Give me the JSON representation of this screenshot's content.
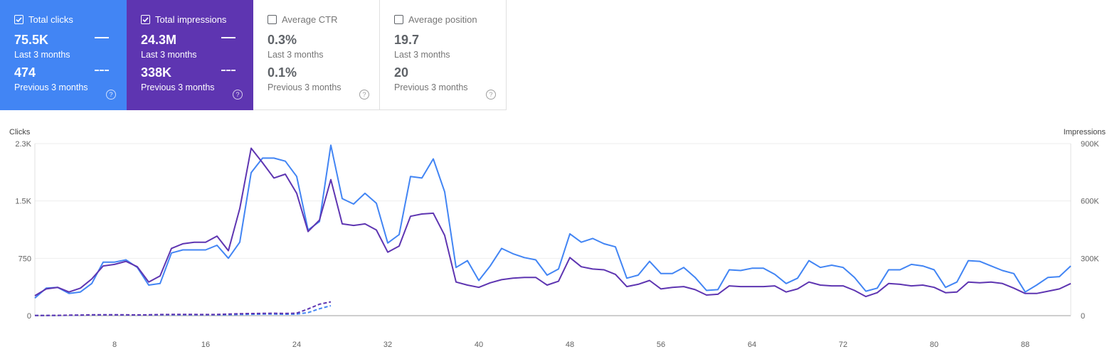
{
  "cards": [
    {
      "label": "Total clicks",
      "checked": true,
      "bg": "#4285f4",
      "value": "75.5K",
      "period": "Last 3 months",
      "prev_value": "474",
      "prev_period": "Previous 3 months"
    },
    {
      "label": "Total impressions",
      "checked": true,
      "bg": "#5e35b1",
      "value": "24.3M",
      "period": "Last 3 months",
      "prev_value": "338K",
      "prev_period": "Previous 3 months"
    },
    {
      "label": "Average CTR",
      "checked": false,
      "bg": "#ffffff",
      "value": "0.3%",
      "period": "Last 3 months",
      "prev_value": "0.1%",
      "prev_period": "Previous 3 months"
    },
    {
      "label": "Average position",
      "checked": false,
      "bg": "#ffffff",
      "value": "19.7",
      "period": "Last 3 months",
      "prev_value": "20",
      "prev_period": "Previous 3 months"
    }
  ],
  "help_icon": "?",
  "chart_data": {
    "type": "line",
    "left_axis_label": "Clicks",
    "right_axis_label": "Impressions",
    "left_ylim": [
      0,
      2250
    ],
    "right_ylim": [
      0,
      900000
    ],
    "left_ticks": [
      "0",
      "750",
      "1.5K",
      "2.3K"
    ],
    "right_ticks": [
      "0",
      "300K",
      "600K",
      "900K"
    ],
    "x_range": [
      1,
      92
    ],
    "x_ticks": [
      8,
      16,
      24,
      32,
      40,
      48,
      56,
      64,
      72,
      80,
      88
    ],
    "grid": true,
    "series": [
      {
        "name": "Total clicks",
        "axis": "left",
        "color": "#4285f4",
        "style": "solid",
        "x_start": 1,
        "values": [
          230,
          360,
          370,
          290,
          310,
          420,
          700,
          700,
          730,
          630,
          400,
          420,
          820,
          860,
          860,
          860,
          920,
          750,
          960,
          1870,
          2060,
          2060,
          2020,
          1820,
          1120,
          1230,
          2230,
          1530,
          1460,
          1600,
          1470,
          950,
          1060,
          1820,
          1800,
          2050,
          1620,
          630,
          720,
          460,
          650,
          880,
          810,
          760,
          730,
          530,
          610,
          1070,
          960,
          1010,
          940,
          900,
          490,
          530,
          710,
          550,
          550,
          630,
          500,
          330,
          340,
          600,
          590,
          620,
          620,
          540,
          420,
          490,
          720,
          630,
          660,
          630,
          500,
          320,
          360,
          600,
          600,
          670,
          650,
          600,
          370,
          440,
          720,
          710,
          650,
          590,
          550,
          310,
          400,
          500,
          510,
          650
        ]
      },
      {
        "name": "Total impressions",
        "axis": "right",
        "color": "#5e35b1",
        "style": "solid",
        "x_start": 1,
        "values": [
          104000,
          140000,
          148000,
          124000,
          144000,
          192000,
          260000,
          268000,
          284000,
          256000,
          176000,
          208000,
          352000,
          376000,
          384000,
          384000,
          416000,
          340000,
          560000,
          876000,
          800000,
          720000,
          740000,
          640000,
          440000,
          500000,
          712000,
          480000,
          472000,
          480000,
          448000,
          332000,
          364000,
          520000,
          532000,
          536000,
          420000,
          176000,
          160000,
          148000,
          172000,
          188000,
          196000,
          200000,
          200000,
          160000,
          180000,
          304000,
          256000,
          244000,
          240000,
          216000,
          152000,
          164000,
          184000,
          140000,
          148000,
          152000,
          136000,
          108000,
          112000,
          156000,
          152000,
          152000,
          152000,
          156000,
          124000,
          140000,
          176000,
          160000,
          156000,
          156000,
          132000,
          100000,
          120000,
          168000,
          164000,
          156000,
          160000,
          148000,
          120000,
          124000,
          176000,
          172000,
          176000,
          168000,
          144000,
          116000,
          116000,
          128000,
          140000,
          168000
        ]
      },
      {
        "name": "Total clicks (previous)",
        "axis": "left",
        "color": "#4285f4",
        "style": "dashed",
        "x_start": 1,
        "values": [
          2,
          3,
          3,
          5,
          7,
          9,
          10,
          10,
          9,
          8,
          9,
          11,
          12,
          12,
          12,
          11,
          11,
          13,
          16,
          18,
          20,
          20,
          19,
          20,
          40,
          90,
          130
        ]
      },
      {
        "name": "Total impressions (previous)",
        "axis": "right",
        "color": "#5e35b1",
        "style": "dashed",
        "x_start": 1,
        "values": [
          1000,
          1200,
          1500,
          2500,
          3000,
          4500,
          5000,
          5000,
          4500,
          4000,
          4500,
          6000,
          6500,
          6500,
          6500,
          6000,
          6500,
          8000,
          10000,
          11000,
          12000,
          12500,
          11500,
          13000,
          35000,
          60000,
          72000
        ]
      }
    ]
  }
}
